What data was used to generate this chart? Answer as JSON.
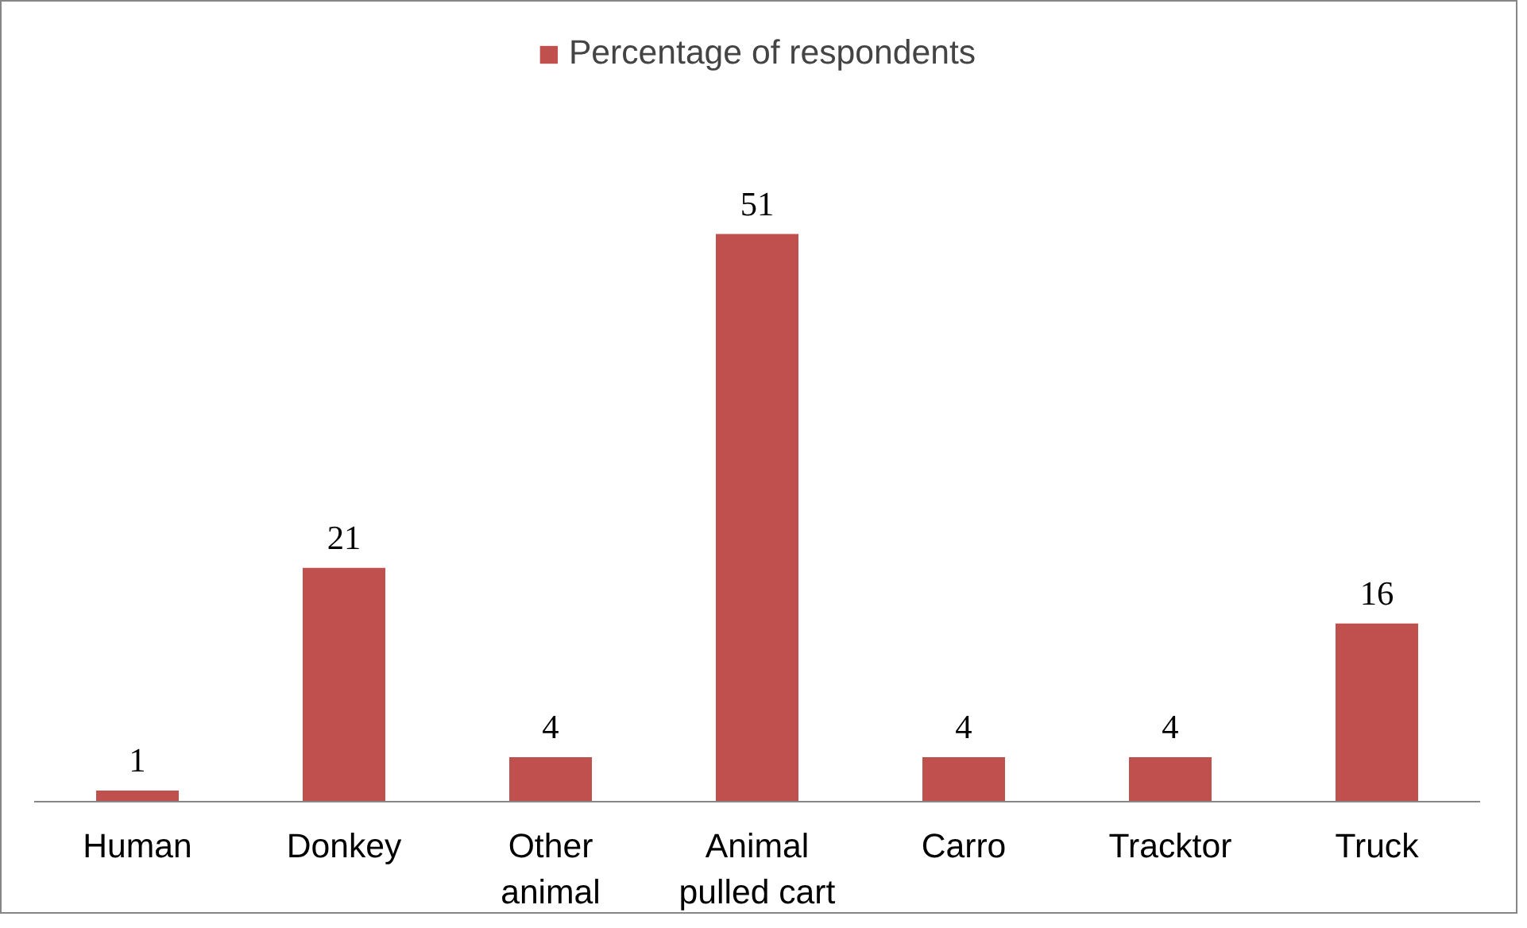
{
  "chart_data": {
    "type": "bar",
    "categories": [
      "Human",
      "Donkey",
      "Other animal",
      "Animal pulled cart",
      "Carro",
      "Tracktor",
      "Truck"
    ],
    "series": [
      {
        "name": "Percentage of respondents",
        "color": "#c0504d",
        "values": [
          1,
          21,
          4,
          51,
          4,
          4,
          16
        ]
      }
    ],
    "data_labels": true,
    "legend": "top",
    "grid": false
  }
}
